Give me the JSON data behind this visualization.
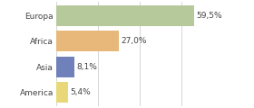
{
  "categories": [
    "Europa",
    "Africa",
    "Asia",
    "America"
  ],
  "values": [
    59.5,
    27.0,
    8.1,
    5.4
  ],
  "labels": [
    "59,5%",
    "27,0%",
    "8,1%",
    "5,4%"
  ],
  "bar_colors": [
    "#b5c99a",
    "#e8b87a",
    "#7080bb",
    "#e8d87a"
  ],
  "xlim": [
    0,
    72
  ],
  "background_color": "#ffffff",
  "bar_height": 0.82,
  "label_fontsize": 6.5,
  "tick_fontsize": 6.5,
  "grid_color": "#d0d0d0",
  "grid_xticks": [
    0,
    18,
    36,
    54,
    72
  ],
  "text_color": "#444444"
}
